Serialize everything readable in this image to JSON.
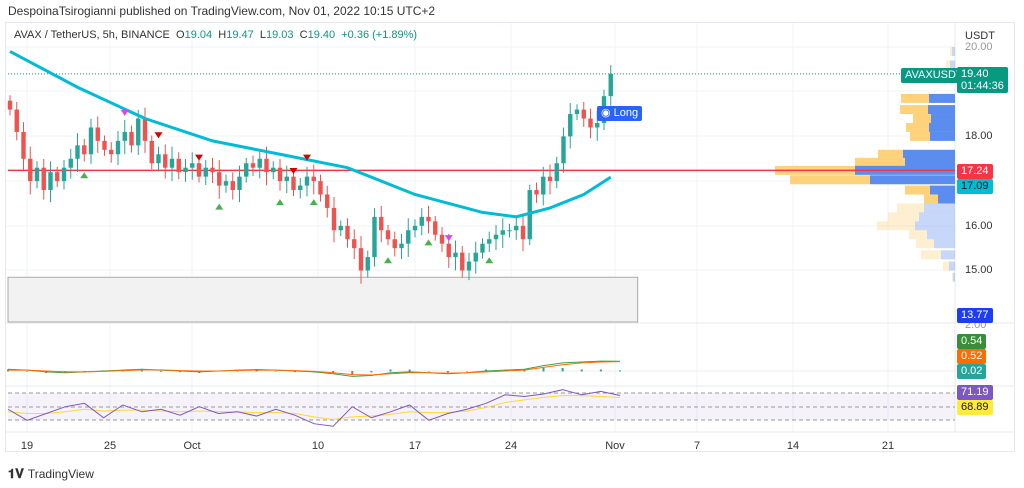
{
  "header": {
    "published": "DespoinaTsirogianni published on TradingView.com, Nov 01, 2022 10:15 UTC+2"
  },
  "legend": {
    "symbol": "AVAX / TetherUS, 5h, BINANCE",
    "open_label": "O",
    "open": "19.04",
    "high_label": "H",
    "high": "19.47",
    "low_label": "L",
    "low": "19.03",
    "close_label": "C",
    "close": "19.40",
    "change": "+0.36 (+1.89%)"
  },
  "price_axis": {
    "currency": "USDT",
    "ticks": [
      "20.00",
      "18.00",
      "16.00",
      "15.00"
    ],
    "macd_tick": "2.00"
  },
  "tags": {
    "symbol_tag": "AVAXUSDT",
    "last_price": "19.40",
    "countdown": "01:44:36",
    "red_line": "17.24",
    "ema": "17.09",
    "box_low": "13.77",
    "macd": "0.54",
    "signal": "0.52",
    "histogram": "0.02",
    "rsi": "71.19",
    "rsi_ma": "68.89"
  },
  "signal_label": "Long",
  "x_axis": [
    "19",
    "25",
    "Oct",
    "10",
    "17",
    "24",
    "Nov",
    "7",
    "14",
    "21"
  ],
  "footer": {
    "brand": "TradingView"
  },
  "colors": {
    "up": "#26a69a",
    "down": "#ef5350",
    "ema": "#00bcd4",
    "red_line": "#f23645",
    "vp_buy": "#5b8def",
    "vp_sell": "#fdd27a",
    "rsi": "#7e57c2"
  },
  "chart_data": {
    "type": "candlestick",
    "closes": [
      18.6,
      18.1,
      17.5,
      17.0,
      17.3,
      16.8,
      17.2,
      17.0,
      17.3,
      17.5,
      17.8,
      17.6,
      18.2,
      17.9,
      17.7,
      17.6,
      17.9,
      18.1,
      17.8,
      18.4,
      17.9,
      17.4,
      17.6,
      17.3,
      17.5,
      17.2,
      17.3,
      17.4,
      17.1,
      17.3,
      17.2,
      16.9,
      17.0,
      16.8,
      17.1,
      17.4,
      17.3,
      17.5,
      17.2,
      17.3,
      17.0,
      17.1,
      16.8,
      16.9,
      17.1,
      17.0,
      16.7,
      16.4,
      15.9,
      16.0,
      15.7,
      15.5,
      15.0,
      15.3,
      16.2,
      15.9,
      15.7,
      15.5,
      15.6,
      15.9,
      16.0,
      16.2,
      16.1,
      15.8,
      15.6,
      15.3,
      15.4,
      15.0,
      15.2,
      15.4,
      15.6,
      15.7,
      15.8,
      15.9,
      15.9,
      16.0,
      15.7,
      16.8,
      16.7,
      17.1,
      17.0,
      17.4,
      18.0,
      18.5,
      18.6,
      18.4,
      18.2,
      18.3,
      18.9,
      19.4
    ],
    "ema": [
      [
        0,
        19.9
      ],
      [
        10,
        19.1
      ],
      [
        20,
        18.4
      ],
      [
        30,
        17.9
      ],
      [
        40,
        17.6
      ],
      [
        50,
        17.3
      ],
      [
        60,
        16.7
      ],
      [
        70,
        16.3
      ],
      [
        75,
        16.2
      ],
      [
        80,
        16.4
      ],
      [
        85,
        16.7
      ],
      [
        89,
        17.09
      ]
    ],
    "signals": [
      [
        11,
        "buy"
      ],
      [
        17,
        "sell"
      ],
      [
        22,
        "sell"
      ],
      [
        28,
        "sell"
      ],
      [
        31,
        "buy"
      ],
      [
        40,
        "buy"
      ],
      [
        42,
        "sell"
      ],
      [
        44,
        "sell"
      ],
      [
        45,
        "buy"
      ],
      [
        56,
        "buy"
      ],
      [
        62,
        "buy"
      ],
      [
        65,
        "sell"
      ],
      [
        71,
        "buy"
      ]
    ],
    "box": {
      "from": 0,
      "to": 93,
      "top": 14.85,
      "bottom": 13.77
    },
    "hline": 17.24,
    "volume_profile": [
      [
        19.9,
        2,
        3,
        false
      ],
      [
        19.6,
        4,
        5,
        false
      ],
      [
        19.3,
        6,
        8,
        false
      ],
      [
        18.85,
        28,
        26,
        true
      ],
      [
        18.6,
        28,
        27,
        true
      ],
      [
        18.4,
        18,
        24,
        true
      ],
      [
        18.2,
        23,
        26,
        true
      ],
      [
        18.0,
        20,
        25,
        true
      ],
      [
        17.6,
        25,
        52,
        true
      ],
      [
        17.42,
        50,
        50,
        true
      ],
      [
        17.24,
        80,
        100,
        true
      ],
      [
        17.03,
        80,
        85,
        true
      ],
      [
        16.8,
        25,
        25,
        true
      ],
      [
        16.6,
        14,
        17,
        true
      ],
      [
        16.4,
        27,
        31,
        false
      ],
      [
        16.2,
        31,
        36,
        false
      ],
      [
        16.0,
        38,
        40,
        false
      ],
      [
        15.8,
        18,
        28,
        false
      ],
      [
        15.6,
        18,
        21,
        false
      ],
      [
        15.35,
        20,
        14,
        false
      ],
      [
        15.1,
        6,
        6,
        false
      ],
      [
        14.85,
        1,
        2,
        false
      ]
    ],
    "macd": [
      0.1,
      0.05,
      -0.05,
      -0.1,
      -0.05,
      0,
      0.05,
      0.1,
      0.05,
      0,
      -0.05,
      0,
      0.05,
      0.08,
      0.05,
      0,
      -0.05,
      -0.15,
      -0.3,
      -0.25,
      -0.1,
      -0.05,
      -0.1,
      -0.15,
      -0.1,
      0,
      0.05,
      0.1,
      0.3,
      0.45,
      0.5,
      0.55,
      0.54
    ],
    "macd_signal": [
      0.05,
      0.05,
      0,
      -0.05,
      -0.05,
      -0.02,
      0.02,
      0.06,
      0.06,
      0.02,
      0,
      0,
      0.03,
      0.05,
      0.05,
      0.02,
      -0.02,
      -0.1,
      -0.2,
      -0.22,
      -0.15,
      -0.1,
      -0.1,
      -0.12,
      -0.1,
      -0.05,
      0,
      0.05,
      0.2,
      0.35,
      0.45,
      0.5,
      0.52
    ],
    "rsi": [
      55,
      42,
      50,
      58,
      62,
      45,
      60,
      52,
      55,
      48,
      58,
      50,
      52,
      47,
      55,
      48,
      38,
      35,
      58,
      45,
      52,
      60,
      42,
      50,
      55,
      62,
      72,
      70,
      73,
      78,
      72,
      76,
      71.19
    ],
    "rsi_ma": [
      52,
      50,
      50,
      52,
      55,
      53,
      54,
      54,
      53,
      52,
      53,
      52,
      52,
      51,
      51,
      50,
      46,
      43,
      46,
      47,
      49,
      52,
      51,
      51,
      53,
      57,
      63,
      66,
      69,
      71,
      71,
      70,
      68.89
    ]
  }
}
